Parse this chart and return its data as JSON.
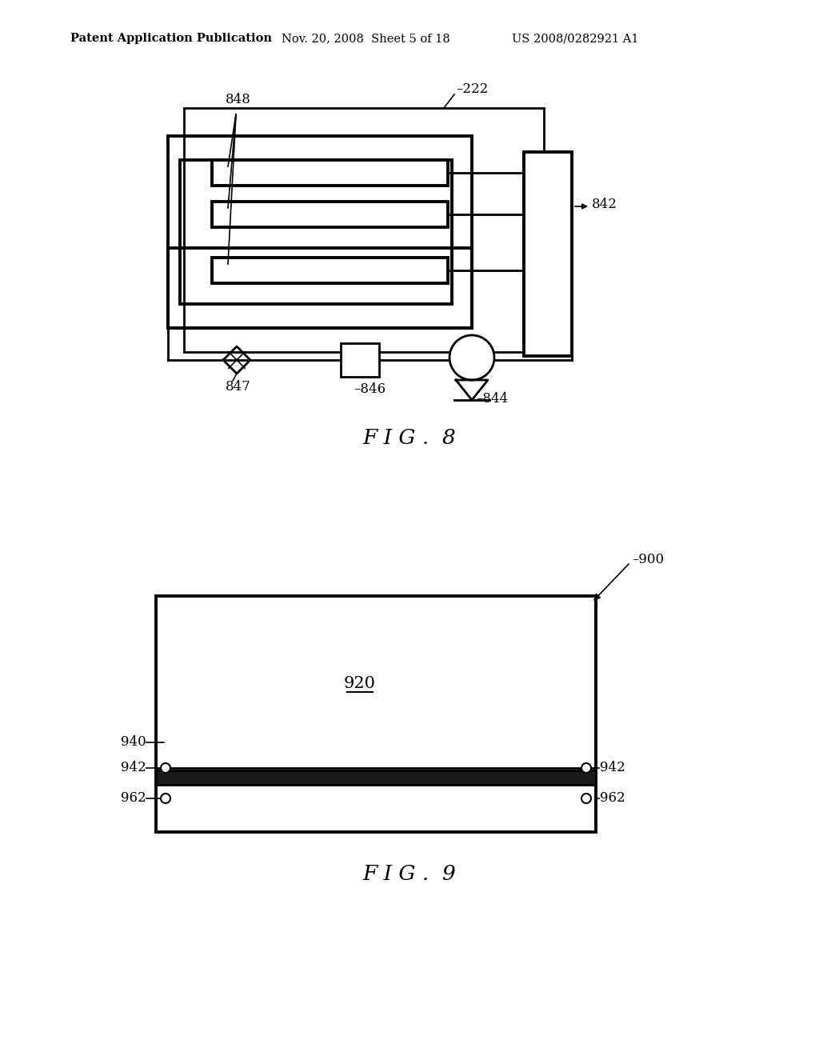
{
  "background_color": "#ffffff",
  "header_bold": "Patent Application Publication",
  "header_date": "Nov. 20, 2008  Sheet 5 of 18",
  "header_patent": "US 2008/0282921 A1",
  "fig8_caption": "F I G .  8",
  "fig9_caption": "F I G .  9",
  "color": "#000000",
  "lw_thin": 1.2,
  "lw_med": 2.0,
  "lw_thick": 2.8
}
